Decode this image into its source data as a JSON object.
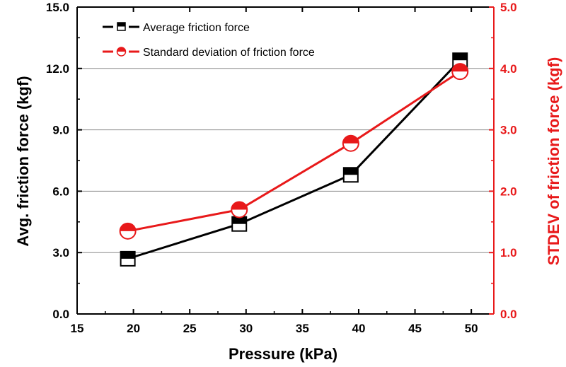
{
  "chart_data": {
    "type": "line",
    "x": [
      19.5,
      29.4,
      39.3,
      49.0
    ],
    "xlabel": "Pressure (kPa)",
    "ylabel": "Avg. friction force (kgf)",
    "y2label": "STDEV of friction force (kgf)",
    "xlim": [
      15,
      52
    ],
    "ylim": [
      0,
      15
    ],
    "y2lim": [
      0,
      5
    ],
    "xticks": [
      15,
      20,
      25,
      30,
      35,
      40,
      45,
      50
    ],
    "yticks": [
      "0.0",
      "3.0",
      "6.0",
      "9.0",
      "12.0",
      "15.0"
    ],
    "y2ticks": [
      "0.0",
      "1.0",
      "2.0",
      "3.0",
      "4.0",
      "5.0"
    ],
    "grid": "horizontal",
    "legend_position": "top-left",
    "series": [
      {
        "name": "Average friction force",
        "axis": "left",
        "color": "#000000",
        "marker": "half-filled-square",
        "values": [
          2.7,
          4.4,
          6.8,
          12.4
        ]
      },
      {
        "name": "Standard deviation of friction force",
        "axis": "right",
        "color": "#e8191a",
        "marker": "half-filled-circle",
        "values": [
          1.35,
          1.7,
          2.78,
          3.95
        ]
      }
    ]
  }
}
